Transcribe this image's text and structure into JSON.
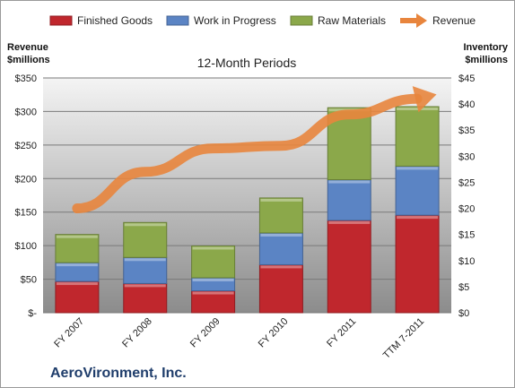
{
  "chart_data": {
    "type": "bar",
    "stacked": true,
    "subtitle": "12-Month Periods",
    "company": "AeroVironment, Inc.",
    "left_axis": {
      "label_line1": "Revenue",
      "label_line2": "$millions",
      "min": 0,
      "max": 350,
      "step": 50,
      "tick_labels": [
        "$-",
        "$50",
        "$100",
        "$150",
        "$200",
        "$250",
        "$300",
        "$350"
      ]
    },
    "right_axis": {
      "label_line1": "Inventory",
      "label_line2": "$millions",
      "min": 0,
      "max": 45,
      "step": 5,
      "tick_labels": [
        "$0",
        "$5",
        "$10",
        "$15",
        "$20",
        "$25",
        "$30",
        "$35",
        "$40",
        "$45"
      ]
    },
    "categories": [
      "FY 2007",
      "FY 2008",
      "FY 2009",
      "FY 2010",
      "FY 2011",
      "TTM 7-2011"
    ],
    "series": [
      {
        "name": "Finished Goods",
        "axis": "right",
        "color": "#c0272d",
        "values": [
          6.0,
          5.6,
          4.2,
          9.2,
          17.7,
          18.7
        ]
      },
      {
        "name": "Work in Progress",
        "axis": "right",
        "color": "#5b84c4",
        "values": [
          3.6,
          5.0,
          2.5,
          6.1,
          7.8,
          9.4
        ]
      },
      {
        "name": "Raw Materials",
        "axis": "right",
        "color": "#8ba84a",
        "values": [
          5.4,
          6.7,
          6.1,
          6.7,
          13.8,
          11.4
        ]
      }
    ],
    "line": {
      "name": "Revenue",
      "axis": "left",
      "color": "#e8853d",
      "values": [
        20,
        27,
        31.5,
        32,
        38,
        41
      ]
    },
    "legend_position": "top",
    "grid": true
  }
}
